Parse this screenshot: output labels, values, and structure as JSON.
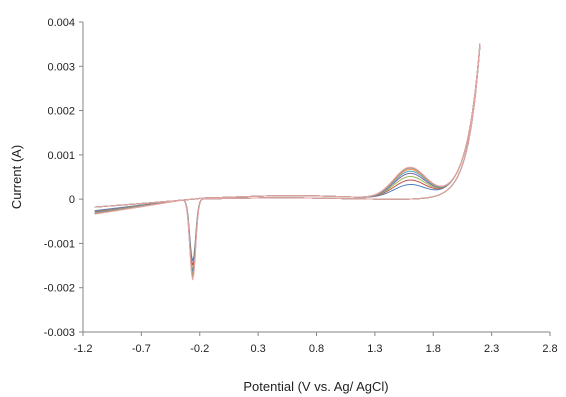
{
  "chart_data": {
    "type": "line",
    "title": "",
    "xlabel": "Potential (V vs. Ag/ AgCl)",
    "ylabel": "Current (A)",
    "xlim": [
      -1.2,
      2.8
    ],
    "ylim": [
      -0.003,
      0.004
    ],
    "x_ticks": [
      -1.2,
      -0.7,
      -0.2,
      0.3,
      0.8,
      1.3,
      1.8,
      2.3,
      2.8
    ],
    "x_tick_labels": [
      "-1.2",
      "-0.7",
      "-0.2",
      "0.3",
      "0.8",
      "1.3",
      "1.8",
      "2.3",
      "2.8"
    ],
    "y_ticks": [
      -0.003,
      -0.002,
      -0.001,
      0,
      0.001,
      0.002,
      0.003,
      0.004
    ],
    "y_tick_labels": [
      "-0.003",
      "-0.002",
      "-0.001",
      "0",
      "0.001",
      "0.002",
      "0.003",
      "0.004"
    ],
    "grid": false,
    "legend": "none",
    "colors": [
      "#4f81bd",
      "#c0504d",
      "#9bbb59",
      "#8064a2",
      "#4bacc6",
      "#f79646",
      "#8c8c8c",
      "#e6a5a5"
    ],
    "series": [
      {
        "peak_ox": 0.0003,
        "peak_red": -0.0014,
        "return_offset": -0.00025
      },
      {
        "peak_ox": 0.0004,
        "peak_red": -0.0015,
        "return_offset": -0.00027
      },
      {
        "peak_ox": 0.00048,
        "peak_red": -0.0016,
        "return_offset": -0.00028
      },
      {
        "peak_ox": 0.00055,
        "peak_red": -0.00165,
        "return_offset": -0.00029
      },
      {
        "peak_ox": 0.0006,
        "peak_red": -0.0017,
        "return_offset": -0.0003
      },
      {
        "peak_ox": 0.00064,
        "peak_red": -0.00175,
        "return_offset": -0.00031
      },
      {
        "peak_ox": 0.00067,
        "peak_red": -0.0018,
        "return_offset": -0.00032
      },
      {
        "peak_ox": 0.00069,
        "peak_red": -0.00183,
        "return_offset": -0.00033
      }
    ]
  }
}
